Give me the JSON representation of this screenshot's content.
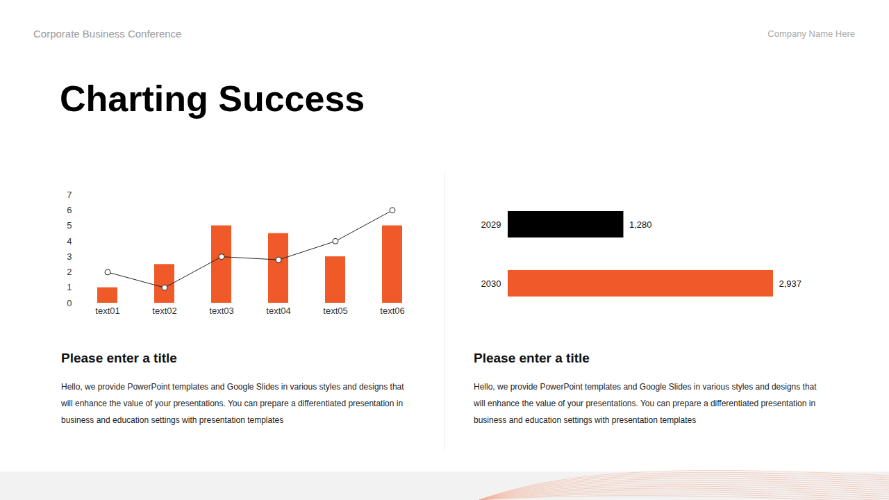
{
  "header": {
    "left": "Corporate Business Conference",
    "right": "Company Name Here"
  },
  "title": "Charting Success",
  "chart_data": [
    {
      "type": "bar",
      "categories": [
        "text01",
        "text02",
        "text03",
        "text04",
        "text05",
        "text06"
      ],
      "ylim": [
        0,
        7
      ],
      "yticks": [
        0,
        1,
        2,
        3,
        4,
        5,
        6,
        7
      ],
      "series": [
        {
          "type": "bar",
          "color": "#ef5a28",
          "values": [
            1,
            2.5,
            5,
            4.5,
            3,
            5
          ]
        },
        {
          "type": "line",
          "color": "#222222",
          "marker": "circle",
          "values": [
            2,
            1,
            3,
            2.8,
            4,
            6
          ]
        }
      ]
    },
    {
      "type": "bar",
      "orientation": "horizontal",
      "categories": [
        "2029",
        "2030"
      ],
      "values": [
        1280,
        2937
      ],
      "value_labels": [
        "1,280",
        "2,937"
      ],
      "colors": [
        "#000000",
        "#ef5a28"
      ],
      "xlim": [
        0,
        2937
      ],
      "data_labels": true,
      "tick_labels": "y"
    }
  ],
  "panels": [
    {
      "title": "Please enter a title",
      "text": "Hello, we provide PowerPoint templates and Google Slides in various styles and designs that will enhance the value of your presentations. You can prepare a differentiated presentation in business and education settings with presentation templates"
    },
    {
      "title": "Please enter a title",
      "text": "Hello, we provide PowerPoint templates and Google Slides in various styles and designs that will enhance the value of your presentations. You can prepare a differentiated presentation in business and education settings with presentation templates"
    }
  ]
}
